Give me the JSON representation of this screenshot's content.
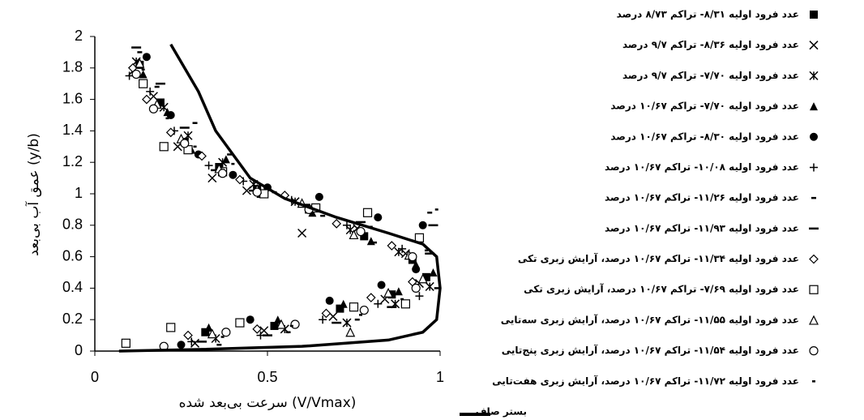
{
  "chart_data": {
    "type": "scatter",
    "xlabel": "سرعت بی‌بعد شده (V/Vmax)",
    "ylabel": "عمق آب بی‌بعد (y/b)",
    "xlim": [
      0,
      1
    ],
    "xticks": [
      0,
      0.5,
      1
    ],
    "ylim": [
      0,
      2
    ],
    "yticks": [
      0,
      0.2,
      0.4,
      0.6,
      0.8,
      1,
      1.2,
      1.4,
      1.6,
      1.8,
      2
    ],
    "grid": false,
    "legend": "right",
    "series": [
      {
        "name": "عدد فرود اولیه ۸/۳۱- تراکم ۸/۷۳ درصد",
        "marker": "square-filled",
        "color": "#000000",
        "x": [
          0.13,
          0.19,
          0.26,
          0.36,
          0.47,
          0.62,
          0.78,
          0.92,
          0.32,
          0.52,
          0.71,
          0.86,
          0.96
        ],
        "values": [
          1.82,
          1.58,
          1.33,
          1.17,
          1.03,
          0.9,
          0.73,
          0.58,
          0.12,
          0.16,
          0.27,
          0.36,
          0.47
        ]
      },
      {
        "name": "عدد فرود اولیه ۸/۳۶- تراکم ۹/۷ درصد",
        "marker": "x",
        "color": "#000000",
        "x": [
          0.11,
          0.17,
          0.24,
          0.34,
          0.44,
          0.6,
          0.76,
          0.9,
          0.29,
          0.49,
          0.69,
          0.84,
          0.94
        ],
        "values": [
          1.78,
          1.62,
          1.3,
          1.1,
          1.02,
          0.75,
          0.78,
          0.62,
          0.05,
          0.13,
          0.22,
          0.33,
          0.43
        ]
      },
      {
        "name": "عدد فرود اولیه ۷/۷۰- تراکم ۹/۷ درصد",
        "marker": "asterisk",
        "color": "#000000",
        "x": [
          0.12,
          0.2,
          0.27,
          0.37,
          0.46,
          0.58,
          0.74,
          0.88,
          0.35,
          0.55,
          0.73,
          0.87,
          0.97
        ],
        "values": [
          1.84,
          1.55,
          1.37,
          1.2,
          1.06,
          0.95,
          0.77,
          0.63,
          0.08,
          0.14,
          0.18,
          0.3,
          0.41
        ]
      },
      {
        "name": "عدد فرود اولیه ۷/۷۰- تراکم ۱۰/۶۷ درصد",
        "marker": "triangle-filled",
        "color": "#000000",
        "x": [
          0.14,
          0.21,
          0.28,
          0.38,
          0.48,
          0.63,
          0.8,
          0.93,
          0.33,
          0.53,
          0.72,
          0.88,
          0.98
        ],
        "values": [
          1.76,
          1.52,
          1.28,
          1.22,
          1.0,
          0.88,
          0.7,
          0.55,
          0.15,
          0.2,
          0.3,
          0.38,
          0.5
        ]
      },
      {
        "name": "عدد فرود اولیه ۸/۳۰- تراکم ۱۰/۶۷ درصد",
        "marker": "circle-filled",
        "color": "#000000",
        "x": [
          0.15,
          0.22,
          0.3,
          0.4,
          0.5,
          0.65,
          0.82,
          0.95,
          0.25,
          0.45,
          0.68,
          0.83,
          0.93
        ],
        "values": [
          1.87,
          1.5,
          1.25,
          1.12,
          1.04,
          0.98,
          0.85,
          0.8,
          0.04,
          0.2,
          0.32,
          0.42,
          0.52
        ]
      },
      {
        "name": "عدد فرود اولیه ۱۰/۰۸- تراکم ۱۰/۶۷ درصد",
        "marker": "plus",
        "color": "#000000",
        "x": [
          0.1,
          0.16,
          0.23,
          0.33,
          0.43,
          0.57,
          0.73,
          0.89,
          0.28,
          0.48,
          0.66,
          0.82,
          0.94
        ],
        "values": [
          1.75,
          1.65,
          1.4,
          1.18,
          1.08,
          0.96,
          0.8,
          0.65,
          0.06,
          0.1,
          0.2,
          0.3,
          0.35
        ]
      },
      {
        "name": "عدد فرود اولیه ۱۱/۲۶- تراکم ۱۰/۶۷ درصد",
        "marker": "dash-short",
        "color": "#000000",
        "x": [
          0.13,
          0.18,
          0.29,
          0.39,
          0.52,
          0.66,
          0.81,
          0.97,
          0.36,
          0.56,
          0.76,
          0.9,
          0.99
        ],
        "values": [
          1.9,
          1.68,
          1.45,
          1.25,
          1.01,
          0.86,
          0.69,
          0.88,
          0.04,
          0.12,
          0.2,
          0.3,
          0.4
        ]
      },
      {
        "name": "عدد فرود اولیه ۱۱/۹۳- تراکم ۱۰/۶۷ درصد",
        "marker": "dash-long",
        "color": "#000000",
        "x": [
          0.12,
          0.19,
          0.26,
          0.35,
          0.46,
          0.61,
          0.77,
          0.98,
          0.31,
          0.5,
          0.7,
          0.86,
          0.97
        ],
        "values": [
          1.93,
          1.7,
          1.42,
          1.15,
          1.02,
          0.93,
          0.82,
          0.8,
          0.06,
          0.1,
          0.18,
          0.28,
          0.62
        ]
      },
      {
        "name": "عدد فرود اولیه ۱۱/۳۴- تراکم ۱۰/۶۷ درصد، آرایش زبری تکی",
        "marker": "diamond-open",
        "color": "#000000",
        "x": [
          0.11,
          0.15,
          0.22,
          0.31,
          0.42,
          0.55,
          0.7,
          0.86,
          0.27,
          0.47,
          0.67,
          0.8,
          0.92
        ],
        "values": [
          1.8,
          1.6,
          1.39,
          1.24,
          1.09,
          0.99,
          0.81,
          0.67,
          0.1,
          0.14,
          0.24,
          0.34,
          0.44
        ]
      },
      {
        "name": "عدد فرود اولیه ۷/۶۹- تراکم ۱۰/۶۷ درصد، آرایش زبری تکی",
        "marker": "square-open",
        "color": "#000000",
        "x": [
          0.14,
          0.2,
          0.27,
          0.37,
          0.49,
          0.64,
          0.79,
          0.94,
          0.09,
          0.22,
          0.42,
          0.75,
          0.9
        ],
        "values": [
          1.7,
          1.3,
          1.28,
          1.14,
          1.0,
          0.91,
          0.88,
          0.72,
          0.05,
          0.15,
          0.18,
          0.28,
          0.3
        ]
      },
      {
        "name": "عدد فرود اولیه ۱۱/۵۵- تراکم ۱۰/۶۷ درصد، آرایش زبری سه‌تایی",
        "marker": "triangle-open",
        "color": "#000000",
        "x": [
          0.13,
          0.18,
          0.25,
          0.36,
          0.47,
          0.6,
          0.75,
          0.91,
          0.34,
          0.54,
          0.74,
          0.85,
          0.95
        ],
        "values": [
          1.83,
          1.57,
          1.35,
          1.16,
          1.03,
          0.94,
          0.74,
          0.61,
          0.11,
          0.17,
          0.12,
          0.37,
          0.46
        ]
      },
      {
        "name": "عدد فرود اولیه ۱۱/۵۴- تراکم ۱۰/۶۷ درصد، آرایش زبری پنج‌تایی",
        "marker": "circle-open",
        "color": "#000000",
        "x": [
          0.12,
          0.17,
          0.26,
          0.37,
          0.47,
          0.62,
          0.77,
          0.92,
          0.2,
          0.38,
          0.58,
          0.78,
          0.93
        ],
        "values": [
          1.76,
          1.54,
          1.32,
          1.13,
          1.01,
          0.9,
          0.76,
          0.6,
          0.03,
          0.12,
          0.17,
          0.26,
          0.4
        ]
      },
      {
        "name": "عدد فرود اولیه ۱۱/۷۲- تراکم ۱۰/۶۷ درصد، آرایش زبری هفت‌تایی",
        "marker": "dash-small",
        "color": "#000000",
        "x": [
          0.14,
          0.21,
          0.29,
          0.4,
          0.5,
          0.65,
          0.8,
          0.96,
          0.37,
          0.57,
          0.77,
          0.89,
          0.99
        ],
        "values": [
          1.79,
          1.48,
          1.3,
          1.19,
          1.05,
          0.97,
          0.79,
          0.64,
          0.09,
          0.16,
          0.23,
          0.33,
          0.9
        ]
      },
      {
        "name": "بستر صاف",
        "marker": "line",
        "color": "#000000",
        "x": [
          0.07,
          0.3,
          0.6,
          0.85,
          0.95,
          0.99,
          1.0,
          0.99,
          0.95,
          0.85,
          0.7,
          0.55,
          0.45,
          0.35,
          0.3,
          0.22
        ],
        "values": [
          0.0,
          0.01,
          0.03,
          0.07,
          0.12,
          0.2,
          0.4,
          0.6,
          0.68,
          0.75,
          0.85,
          0.97,
          1.1,
          1.4,
          1.65,
          1.95
        ]
      }
    ]
  }
}
